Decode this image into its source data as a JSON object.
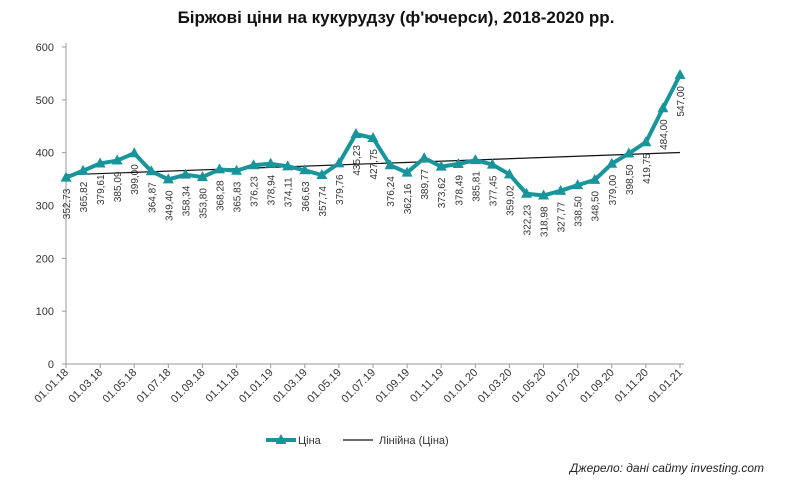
{
  "chart_data": {
    "type": "line",
    "title": "Біржові ціни на кукурудзу (ф'ючерси), 2018-2020 рр.",
    "ylim": [
      0,
      600
    ],
    "yticks": [
      0,
      100,
      200,
      300,
      400,
      500,
      600
    ],
    "x_tick_labels": [
      "01.01.18",
      "01.03.18",
      "01.05.18",
      "01.07.18",
      "01.09.18",
      "01.11.18",
      "01.01.19",
      "01.03.19",
      "01.05.19",
      "01.07.19",
      "01.09.19",
      "01.11.19",
      "01.01.20",
      "01.03.20",
      "01.05.20",
      "01.07.20",
      "01.09.20",
      "01.11.20",
      "01.01.21"
    ],
    "grid": false,
    "legend_position": "bottom",
    "series": [
      {
        "name": "Ціна",
        "color": "#17959b",
        "values": [
          352.73,
          365.82,
          379.61,
          385.09,
          399.0,
          364.87,
          349.4,
          358.34,
          353.8,
          368.28,
          365.83,
          376.23,
          378.94,
          374.11,
          366.63,
          357.74,
          379.76,
          435.23,
          427.75,
          376.24,
          362.16,
          389.77,
          373.62,
          378.49,
          385.81,
          377.45,
          359.02,
          322.23,
          318.98,
          327.77,
          338.5,
          348.5,
          379.0,
          398.5,
          419.75,
          484.0,
          547.0
        ],
        "labels": [
          "352,73",
          "365,82",
          "379,61",
          "385,09",
          "399,00",
          "364,87",
          "349,40",
          "358,34",
          "353,80",
          "368,28",
          "365,83",
          "376,23",
          "378,94",
          "374,11",
          "366,63",
          "357,74",
          "379,76",
          "435,23",
          "427,75",
          "376,24",
          "362,16",
          "389,77",
          "373,62",
          "378,49",
          "385,81",
          "377,45",
          "359,02",
          "322,23",
          "318,98",
          "327,77",
          "338,50",
          "348,50",
          "379,00",
          "398,50",
          "419,75",
          "484,00",
          "547,00"
        ]
      },
      {
        "name": "Лінійна (Ціна)",
        "color": "#111111",
        "type": "trendline",
        "values": [
          358.1,
          400.3
        ]
      }
    ]
  },
  "source": "Джерело: дані сайту investing.com"
}
